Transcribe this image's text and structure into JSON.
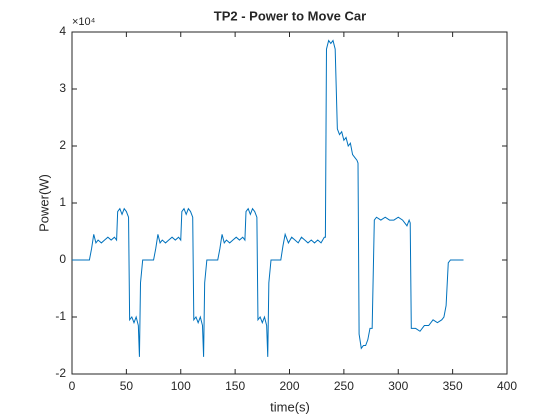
{
  "chart_data": {
    "type": "line",
    "title": "TP2 - Power to Move Car",
    "xlabel": "time(s)",
    "ylabel": "Power(W)",
    "y_exponent": "×10⁴",
    "color": "#0072bd",
    "xlim": [
      0,
      400
    ],
    "xticks": [
      0,
      50,
      100,
      150,
      200,
      250,
      300,
      350,
      400
    ],
    "ylim": [
      -2,
      4
    ],
    "yticks": [
      -2,
      -1,
      0,
      1,
      2,
      3,
      4
    ],
    "x": [
      0,
      16,
      18,
      20,
      22,
      24,
      27,
      30,
      33,
      36,
      39,
      41,
      42,
      44,
      46,
      48,
      50,
      52,
      53,
      55,
      57,
      59,
      61,
      62,
      63,
      65,
      75,
      77,
      79,
      81,
      83,
      86,
      89,
      92,
      95,
      98,
      100,
      101,
      103,
      105,
      107,
      109,
      111,
      112,
      114,
      116,
      118,
      120,
      121,
      122,
      124,
      134,
      136,
      138,
      140,
      142,
      145,
      148,
      151,
      154,
      157,
      159,
      160,
      162,
      164,
      166,
      168,
      170,
      171,
      173,
      175,
      177,
      179,
      180,
      181,
      183,
      192,
      194,
      196,
      199,
      202,
      205,
      208,
      211,
      214,
      217,
      220,
      223,
      226,
      229,
      232,
      233,
      234,
      236,
      238,
      240,
      242,
      244,
      246,
      248,
      250,
      252,
      254,
      256,
      258,
      260,
      262,
      263,
      264,
      266,
      268,
      270,
      272,
      274,
      276,
      278,
      280,
      284,
      288,
      292,
      296,
      300,
      304,
      308,
      310,
      311,
      312,
      316,
      320,
      324,
      328,
      332,
      336,
      340,
      342,
      344,
      346,
      348,
      360
    ],
    "values": [
      0,
      0,
      0.2,
      0.45,
      0.3,
      0.35,
      0.3,
      0.35,
      0.4,
      0.35,
      0.4,
      0.35,
      0.85,
      0.9,
      0.8,
      0.9,
      0.85,
      0.75,
      -1.05,
      -1.0,
      -1.1,
      -1.0,
      -1.15,
      -1.7,
      -0.4,
      0,
      0,
      0.2,
      0.45,
      0.3,
      0.35,
      0.3,
      0.35,
      0.4,
      0.35,
      0.4,
      0.35,
      0.85,
      0.9,
      0.8,
      0.9,
      0.85,
      0.75,
      -1.05,
      -1.0,
      -1.1,
      -1.0,
      -1.15,
      -1.7,
      -0.4,
      0,
      0,
      0.2,
      0.45,
      0.3,
      0.35,
      0.3,
      0.35,
      0.4,
      0.35,
      0.4,
      0.35,
      0.85,
      0.9,
      0.8,
      0.9,
      0.85,
      0.75,
      -1.05,
      -1.0,
      -1.1,
      -1.0,
      -1.15,
      -1.7,
      -0.4,
      0,
      0,
      0.25,
      0.45,
      0.3,
      0.4,
      0.35,
      0.3,
      0.4,
      0.35,
      0.3,
      0.35,
      0.3,
      0.35,
      0.3,
      0.4,
      0.4,
      3.7,
      3.85,
      3.8,
      3.85,
      3.7,
      2.3,
      2.2,
      2.25,
      2.1,
      2.15,
      2.0,
      2.05,
      1.85,
      1.8,
      1.75,
      1.7,
      -1.3,
      -1.55,
      -1.5,
      -1.5,
      -1.4,
      -1.2,
      -1.2,
      0.7,
      0.75,
      0.7,
      0.75,
      0.7,
      0.7,
      0.75,
      0.7,
      0.6,
      0.7,
      0.65,
      -1.2,
      -1.2,
      -1.25,
      -1.15,
      -1.15,
      -1.05,
      -1.1,
      -1.05,
      -1.0,
      -0.8,
      -0.05,
      0,
      0
    ]
  }
}
